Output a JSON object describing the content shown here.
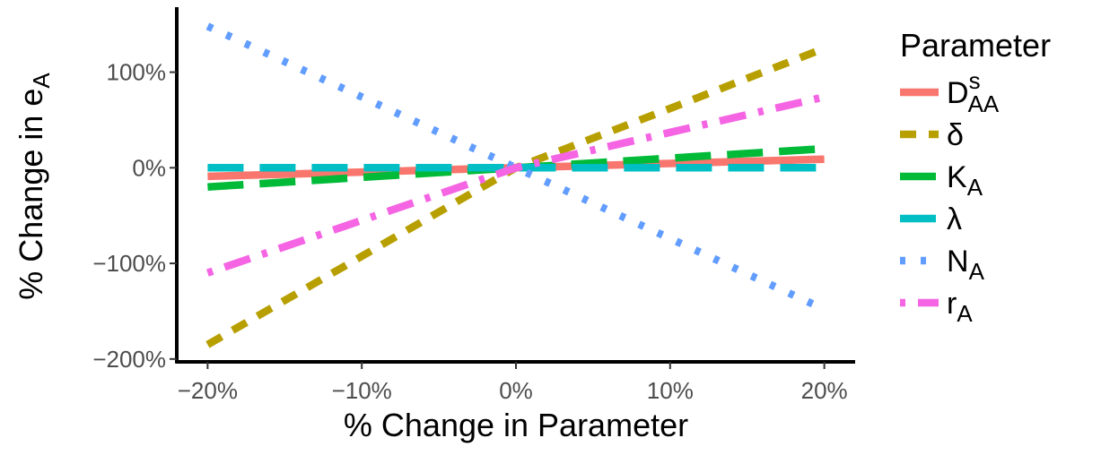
{
  "chart_data": {
    "type": "line",
    "title": "",
    "xlabel": "% Change in Parameter",
    "ylabel": {
      "main": "% Change in  e",
      "sub": "A"
    },
    "x": [
      -20,
      -10,
      0,
      10,
      20
    ],
    "xlim": [
      -22,
      22
    ],
    "ylim": [
      -203,
      168
    ],
    "x_ticks": [
      -20,
      -10,
      0,
      10,
      20
    ],
    "x_tick_labels": [
      "−20%",
      "−10%",
      "0%",
      "10%",
      "20%"
    ],
    "y_ticks": [
      -200,
      -100,
      0,
      100
    ],
    "y_tick_labels": [
      "−200%",
      "−100%",
      "0%",
      "100%"
    ],
    "grid": false,
    "legend": {
      "title": "Parameter",
      "position": "right"
    },
    "series": [
      {
        "id": "DsAA",
        "name": {
          "main": "D",
          "sup": "s",
          "sub": "AA"
        },
        "color": "#F8766D",
        "linestyle": "solid",
        "values": [
          -9,
          -4.5,
          0,
          4.5,
          9
        ]
      },
      {
        "id": "delta",
        "name": {
          "main": "δ"
        },
        "color": "#B79F00",
        "linestyle": "dashed",
        "values": [
          -185,
          -92.5,
          0,
          62,
          125
        ]
      },
      {
        "id": "KA",
        "name": {
          "main": "K",
          "sub": "A"
        },
        "color": "#00BA38",
        "linestyle": "longdash",
        "values": [
          -20,
          -10,
          0,
          10,
          20
        ]
      },
      {
        "id": "lambda",
        "name": {
          "main": "λ"
        },
        "color": "#00BFC4",
        "linestyle": "longdash",
        "values": [
          0,
          0,
          0,
          0,
          0
        ]
      },
      {
        "id": "NA",
        "name": {
          "main": "N",
          "sub": "A"
        },
        "color": "#619CFF",
        "linestyle": "dotted",
        "values": [
          148,
          74,
          0,
          -74,
          -148
        ]
      },
      {
        "id": "rA",
        "name": {
          "main": "r",
          "sub": "A"
        },
        "color": "#F564E3",
        "linestyle": "dotdash",
        "values": [
          -110,
          -55,
          0,
          37,
          74
        ]
      }
    ]
  }
}
